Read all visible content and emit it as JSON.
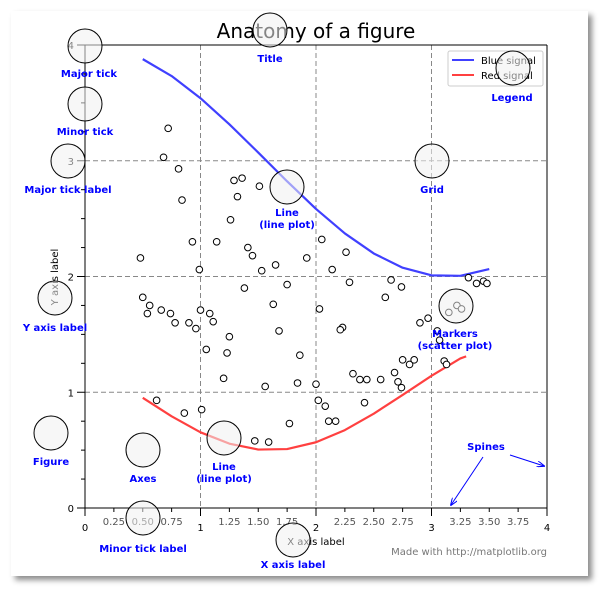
{
  "chart_data": {
    "type": "line",
    "title": "Anatomy of a figure",
    "xlabel": "X axis label",
    "ylabel": "Y axis label",
    "xlim": [
      0,
      4
    ],
    "ylim": [
      0,
      4
    ],
    "grid": true,
    "legend_placement": "top-right",
    "x_major_ticks": [
      "0",
      "1",
      "2",
      "3",
      "4"
    ],
    "x_minor_ticks": [
      "0.25",
      "0.50",
      "0.75",
      "1.25",
      "1.50",
      "1.75",
      "2.25",
      "2.50",
      "2.75",
      "3.25",
      "3.50",
      "3.75"
    ],
    "y_major_ticks": [
      "0",
      "1",
      "2",
      "3",
      "4"
    ],
    "series": [
      {
        "name": "Blue signal",
        "color": "#4040ff",
        "x": [
          0.5,
          0.75,
          1,
          1.25,
          1.5,
          1.75,
          2,
          2.25,
          2.5,
          2.75,
          3,
          3.25,
          3.5
        ],
        "y": [
          3.878,
          3.732,
          3.54,
          3.315,
          3.071,
          2.822,
          2.584,
          2.372,
          2.199,
          2.076,
          2.01,
          2.006,
          2.064
        ]
      },
      {
        "name": "Red signal",
        "color": "#ff4040",
        "x": [
          0.5,
          0.75,
          1,
          1.25,
          1.5,
          1.75,
          2,
          2.25,
          2.5,
          2.75,
          3,
          3.25,
          3.3
        ],
        "y": [
          0.952,
          0.792,
          0.654,
          0.556,
          0.505,
          0.509,
          0.568,
          0.673,
          0.815,
          0.977,
          1.142,
          1.292,
          1.31
        ]
      }
    ],
    "scatter": [
      [
        0.72,
        3.28
      ],
      [
        0.68,
        3.03
      ],
      [
        0.81,
        2.93
      ],
      [
        0.84,
        2.66
      ],
      [
        0.48,
        2.16
      ],
      [
        0.93,
        2.3
      ],
      [
        0.99,
        2.06
      ],
      [
        1.14,
        2.3
      ],
      [
        1.26,
        2.49
      ],
      [
        1.29,
        2.83
      ],
      [
        1.36,
        2.85
      ],
      [
        1.32,
        2.69
      ],
      [
        1.51,
        2.78
      ],
      [
        1.41,
        2.25
      ],
      [
        1.45,
        2.18
      ],
      [
        1.53,
        2.05
      ],
      [
        1.65,
        2.1
      ],
      [
        1.38,
        1.9
      ],
      [
        1.75,
        1.93
      ],
      [
        1.63,
        1.76
      ],
      [
        1.0,
        1.71
      ],
      [
        1.68,
        1.53
      ],
      [
        0.5,
        1.82
      ],
      [
        0.56,
        1.75
      ],
      [
        0.54,
        1.68
      ],
      [
        0.66,
        1.71
      ],
      [
        0.74,
        1.68
      ],
      [
        0.78,
        1.6
      ],
      [
        0.9,
        1.6
      ],
      [
        0.96,
        1.55
      ],
      [
        1.08,
        1.68
      ],
      [
        1.11,
        1.61
      ],
      [
        1.05,
        1.37
      ],
      [
        1.23,
        1.34
      ],
      [
        1.2,
        1.12
      ],
      [
        1.56,
        1.05
      ],
      [
        1.84,
        1.08
      ],
      [
        1.86,
        1.32
      ],
      [
        2.05,
        2.32
      ],
      [
        1.92,
        2.16
      ],
      [
        2.14,
        2.06
      ],
      [
        2.26,
        2.21
      ],
      [
        2.29,
        1.95
      ],
      [
        2.03,
        1.72
      ],
      [
        2.23,
        1.56
      ],
      [
        2.21,
        1.54
      ],
      [
        2.32,
        1.16
      ],
      [
        2.38,
        1.11
      ],
      [
        2.44,
        1.11
      ],
      [
        2.42,
        0.91
      ],
      [
        2.6,
        1.82
      ],
      [
        2.56,
        1.11
      ],
      [
        2.68,
        1.17
      ],
      [
        2.75,
        1.28
      ],
      [
        2.71,
        1.09
      ],
      [
        2.74,
        1.04
      ],
      [
        2.81,
        1.24
      ],
      [
        2.85,
        1.28
      ],
      [
        2.65,
        1.97
      ],
      [
        2.74,
        1.91
      ],
      [
        2.9,
        1.6
      ],
      [
        2.97,
        1.64
      ],
      [
        3.05,
        1.53
      ],
      [
        3.07,
        1.45
      ],
      [
        3.11,
        1.27
      ],
      [
        3.13,
        1.24
      ],
      [
        3.15,
        1.69
      ],
      [
        3.22,
        1.75
      ],
      [
        3.26,
        1.72
      ],
      [
        3.32,
        1.99
      ],
      [
        3.39,
        1.94
      ],
      [
        3.45,
        1.96
      ],
      [
        3.48,
        1.94
      ],
      [
        0.62,
        0.93
      ],
      [
        0.86,
        0.82
      ],
      [
        1.01,
        0.85
      ],
      [
        1.47,
        0.58
      ],
      [
        1.59,
        0.57
      ],
      [
        1.77,
        0.73
      ],
      [
        2.0,
        1.07
      ],
      [
        2.02,
        0.93
      ],
      [
        2.08,
        0.88
      ],
      [
        2.11,
        0.75
      ],
      [
        2.17,
        0.75
      ],
      [
        1.25,
        1.48
      ]
    ]
  },
  "annotations": {
    "major_tick": "Major tick",
    "minor_tick": "Minor tick",
    "major_tick_label": "Major tick label",
    "title": "Title",
    "line_1": "Line",
    "line_1b": "(line plot)",
    "legend": "Legend",
    "grid": "Grid",
    "y_axis_label": "Y axis label",
    "markers": "Markers",
    "markers_b": "(scatter plot)",
    "figure": "Figure",
    "axes": "Axes",
    "line_2": "Line",
    "line_2b": "(line plot)",
    "minor_tick_label": "Minor tick label",
    "x_axis_label": "X axis label",
    "spines": "Spines"
  },
  "credit": "Made with http://matplotlib.org",
  "annotation_color": "#0000ff"
}
